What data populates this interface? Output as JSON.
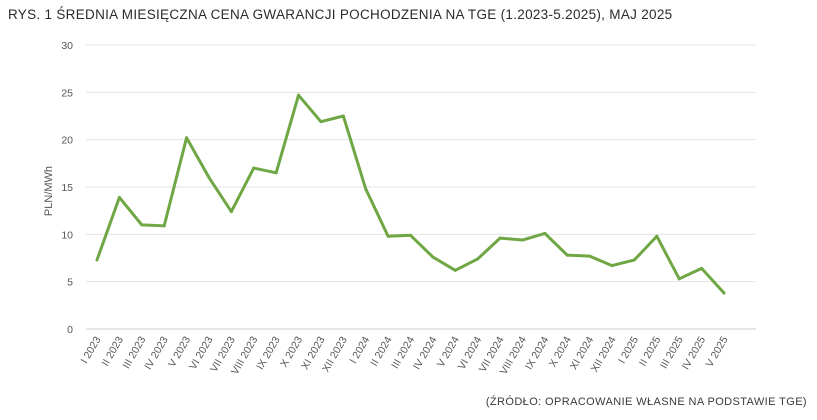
{
  "header": {
    "title": "RYS. 1 ŚREDNIA MIESIĘCZNA CENA GWARANCJI POCHODZENIA NA TGE (1.2023-5.2025), MAJ 2025"
  },
  "footer": {
    "source": "(ŹRÓDŁO: OPRACOWANIE WŁASNE NA PODSTAWIE TGE)"
  },
  "chart_data": {
    "type": "line",
    "title": "RYS. 1 ŚREDNIA MIESIĘCZNA CENA GWARANCJI POCHODZENIA NA TGE (1.2023-5.2025), MAJ 2025",
    "xlabel": "",
    "ylabel": "PLN/MWh",
    "ylim": [
      0,
      30
    ],
    "yticks": [
      0,
      5,
      10,
      15,
      20,
      25,
      30
    ],
    "grid": true,
    "line_color": "#70a745",
    "categories": [
      "I 2023",
      "II 2023",
      "III 2023",
      "IV 2023",
      "V 2023",
      "VI 2023",
      "VII 2023",
      "VIII 2023",
      "IX 2023",
      "X 2023",
      "XI 2023",
      "XII 2023",
      "I 2024",
      "II 2024",
      "III 2024",
      "IV 2024",
      "V 2024",
      "VI 2024",
      "VII 2024",
      "VIII 2024",
      "IX 2024",
      "X 2024",
      "XI 2024",
      "XII 2024",
      "I 2025",
      "II 2025",
      "III 2025",
      "IV 2025",
      "V 2025"
    ],
    "values": [
      7.3,
      13.9,
      11.0,
      10.9,
      20.2,
      16.0,
      12.4,
      17.0,
      16.5,
      24.7,
      21.9,
      22.5,
      14.8,
      9.8,
      9.9,
      7.6,
      6.2,
      7.4,
      9.6,
      9.4,
      10.1,
      7.8,
      7.7,
      6.7,
      7.3,
      9.8,
      5.3,
      6.4,
      3.8
    ]
  }
}
